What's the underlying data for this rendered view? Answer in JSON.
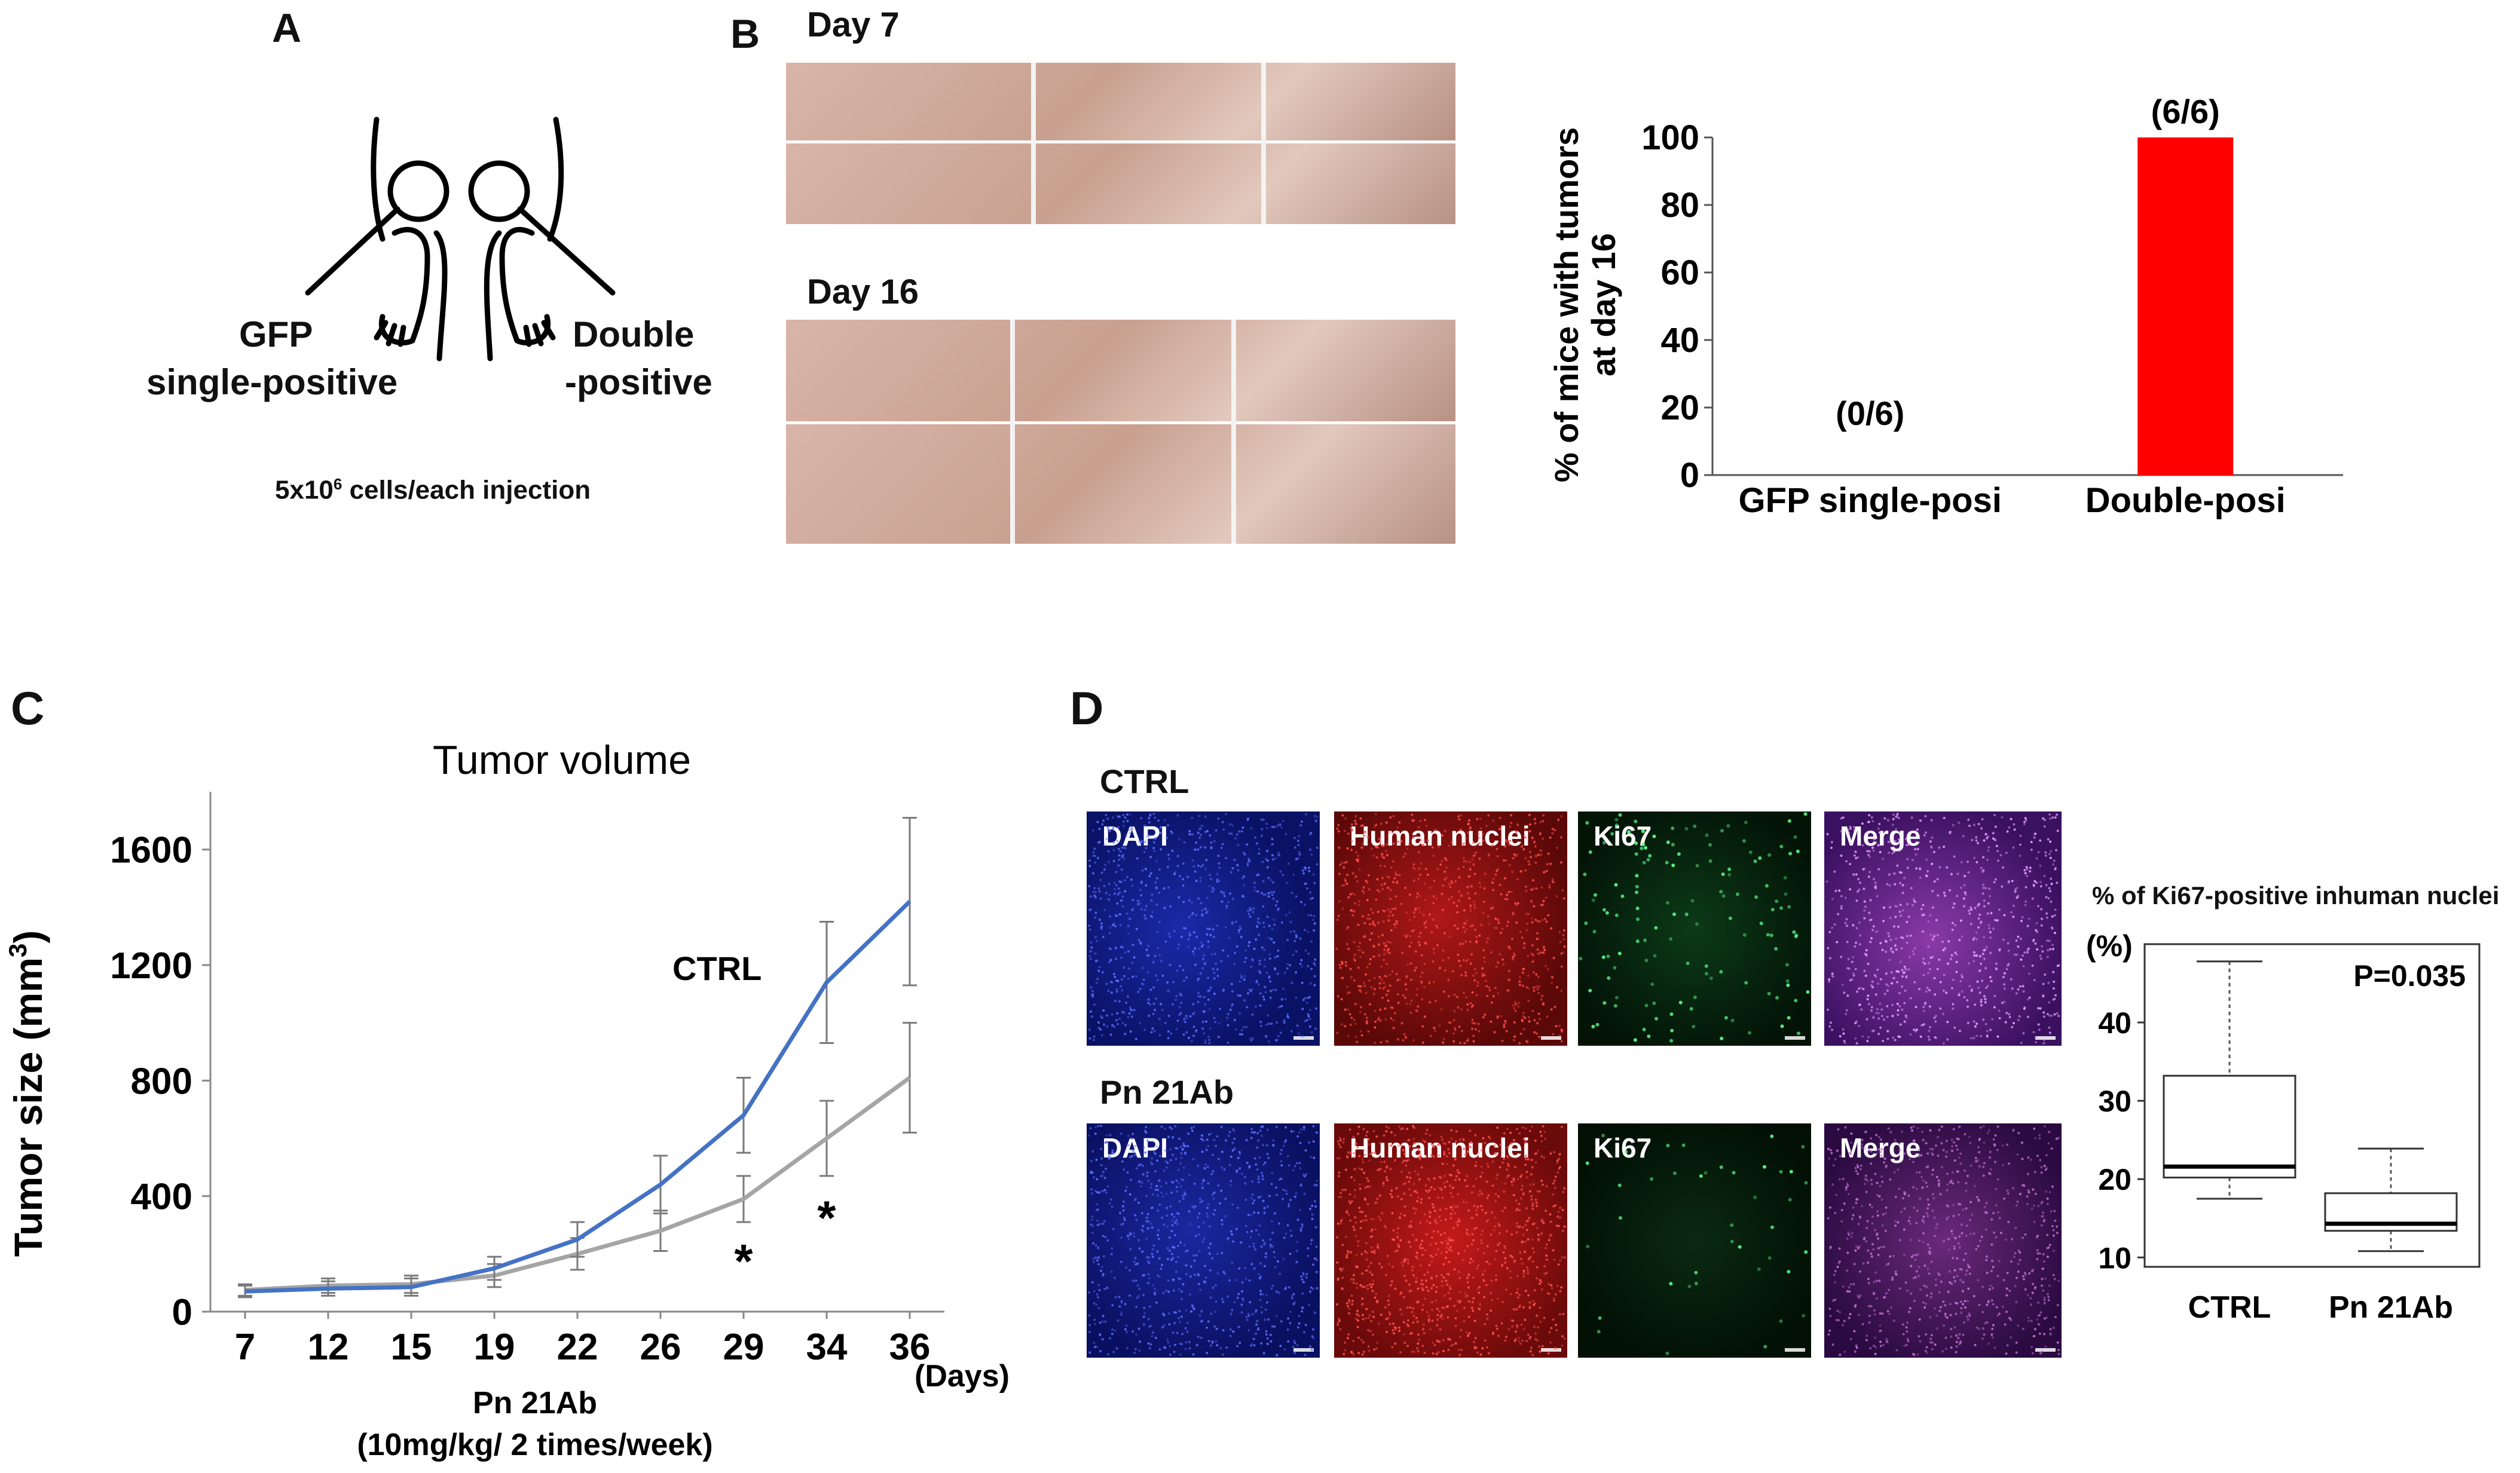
{
  "panels": {
    "A": "A",
    "B": "B",
    "C": "C",
    "D": "D"
  },
  "panelA": {
    "label_left_1": "GFP",
    "label_left_2": "single-positive",
    "label_right_1": "Double",
    "label_right_2": "-positive",
    "cells_prefix": "5x10",
    "cells_exp": "6",
    "cells_suffix": " cells/each injection"
  },
  "panelB": {
    "day7": "Day 7",
    "day16": "Day 16",
    "chart_data": {
      "type": "bar",
      "categories": [
        "GFP single-posi",
        "Double-posi"
      ],
      "values": [
        0,
        100
      ],
      "data_labels": [
        "(0/6)",
        "(6/6)"
      ],
      "ylabel_line1": "% of mice with tumors",
      "ylabel_line2": "at day 16",
      "ylim": [
        0,
        100
      ],
      "yticks": [
        "0",
        "20",
        "40",
        "60",
        "80",
        "100"
      ],
      "bar_color": "#ff0000"
    }
  },
  "panelC": {
    "chart_data": {
      "type": "line",
      "title": "Tumor volume",
      "ylabel": "Tumor size (mm",
      "ylabel_sup": "3",
      "ylabel_close": ")",
      "x_unit": "(Days)",
      "xticks": [
        "7",
        "12",
        "15",
        "19",
        "22",
        "26",
        "29",
        "34",
        "36"
      ],
      "yticks": [
        "0",
        "400",
        "800",
        "1200",
        "1600"
      ],
      "ylim": [
        0,
        1800
      ],
      "series": [
        {
          "name": "CTRL",
          "color": "#4472c4",
          "values": [
            70,
            80,
            85,
            150,
            250,
            440,
            680,
            1140,
            1420
          ],
          "errors": [
            20,
            25,
            30,
            40,
            60,
            100,
            130,
            210,
            290
          ]
        },
        {
          "name": "",
          "color": "#a5a5a5",
          "values": [
            75,
            90,
            95,
            125,
            200,
            280,
            390,
            600,
            810
          ],
          "errors": [
            20,
            25,
            30,
            40,
            55,
            70,
            80,
            130,
            190
          ]
        }
      ],
      "significance": [
        {
          "x": "29",
          "y": 180,
          "mark": "*"
        },
        {
          "x": "34",
          "y": 330,
          "mark": "*"
        }
      ],
      "treatment_line1": "Pn 21Ab",
      "treatment_line2": "(10mg/kg/ 2 times/week)"
    }
  },
  "panelD": {
    "row1_title": "CTRL",
    "row2_title": "Pn 21Ab",
    "channels": [
      "DAPI",
      "Human nuclei",
      "Ki67",
      "Merge"
    ],
    "box_chart": {
      "type": "box",
      "title": "% of Ki67-positive inhuman nuclei",
      "unit": "(%)",
      "pvalue": "P=0.035",
      "categories": [
        "CTRL",
        "Pn 21Ab"
      ],
      "yticks": [
        "10",
        "20",
        "30",
        "40"
      ],
      "boxes": [
        {
          "min": 17.5,
          "q1": 20.2,
          "median": 21.6,
          "q3": 33.2,
          "max": 47.8
        },
        {
          "min": 10.8,
          "q1": 13.4,
          "median": 14.3,
          "q3": 18.2,
          "max": 23.9
        }
      ]
    }
  }
}
